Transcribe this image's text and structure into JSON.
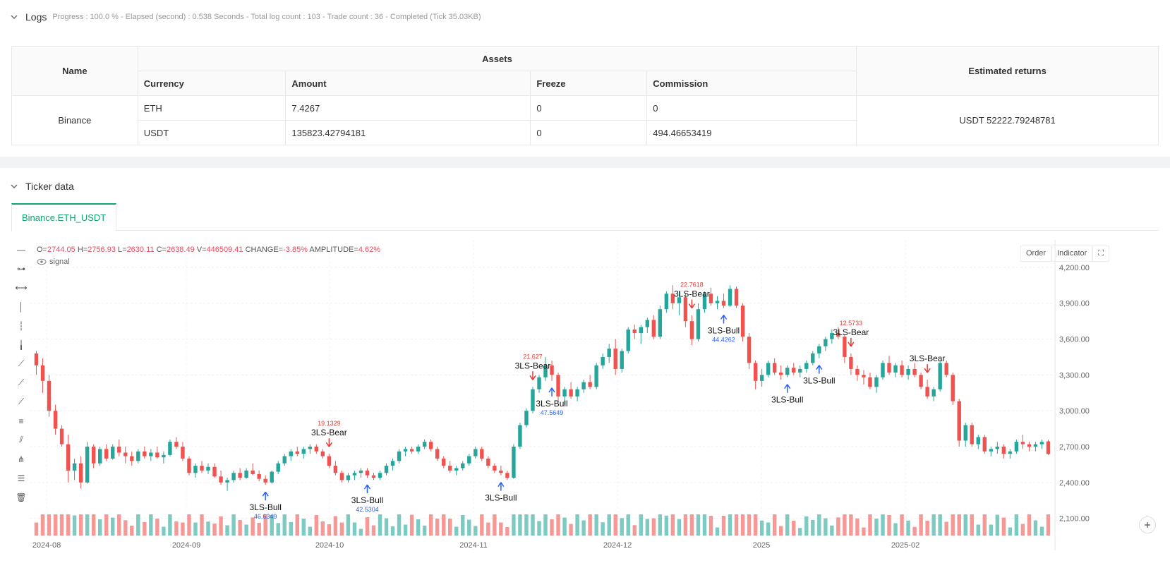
{
  "logs": {
    "title": "Logs",
    "meta": "Progress : 100.0 % - Elapsed (second) : 0.538  Seconds - Total log count : 103 - Trade count : 36 - Completed (Tick 35.03KB)"
  },
  "assets_table": {
    "headers": {
      "name": "Name",
      "assets": "Assets",
      "estimated_returns": "Estimated returns"
    },
    "sub_headers": [
      "Currency",
      "Amount",
      "Freeze",
      "Commission"
    ],
    "exchange": "Binance",
    "rows": [
      {
        "currency": "ETH",
        "amount": "7.4267",
        "freeze": "0",
        "commission": "0"
      },
      {
        "currency": "USDT",
        "amount": "135823.42794181",
        "freeze": "0",
        "commission": "494.46653419"
      }
    ],
    "estimated_returns": "USDT 52222.79248781"
  },
  "ticker": {
    "title": "Ticker data",
    "tab": "Binance.ETH_USDT"
  },
  "chart_header": {
    "o_label": "O=",
    "o": "2744.05",
    "h_label": "H=",
    "h": "2756.93",
    "l_label": "L=",
    "l": "2630.11",
    "c_label": "C=",
    "c": "2638.49",
    "v_label": "V=",
    "v": "446509.41",
    "change_label": "CHANGE=",
    "change": "-3.85%",
    "amp_label": "AMPLITUDE=",
    "amp": "4.62%",
    "signal": "signal",
    "order_btn": "Order",
    "indicator_btn": "Indicator"
  },
  "colors": {
    "up": "#26a69a",
    "down": "#ef5350",
    "accent": "#13a36e",
    "bull_label": "#2962ff",
    "bear_label": "#e53935"
  },
  "toolbar_icons": [
    "cursor-cross-icon",
    "horizontal-ray-icon",
    "horizontal-line-icon",
    "vertical-line-icon",
    "vertical-segment-icon",
    "vertical-ray-icon",
    "trend-line-icon",
    "ray-line-icon",
    "extended-line-icon",
    "fib-icon",
    "parallel-channel-icon",
    "pitchfork-icon",
    "measure-icon",
    "trash-icon"
  ],
  "chart_data": {
    "type": "candlestick",
    "symbol": "Binance.ETH_USDT",
    "y_ticks": [
      "4,200.00",
      "3,900.00",
      "3,600.00",
      "3,300.00",
      "3,000.00",
      "2,700.00",
      "2,400.00",
      "2,100.00"
    ],
    "x_ticks": [
      "2024-08",
      "2024-09",
      "2024-10",
      "2024-11",
      "2024-12",
      "2025",
      "2025-02"
    ],
    "ylim": [
      1950,
      4300
    ],
    "candles": [
      [
        3480,
        3500,
        3300,
        3380
      ],
      [
        3380,
        3440,
        3150,
        3250
      ],
      [
        3250,
        3300,
        2950,
        3000
      ],
      [
        3000,
        3050,
        2800,
        2850
      ],
      [
        2850,
        2880,
        2700,
        2720
      ],
      [
        2720,
        2800,
        2400,
        2500
      ],
      [
        2500,
        2600,
        2420,
        2560
      ],
      [
        2560,
        2620,
        2350,
        2400
      ],
      [
        2400,
        2740,
        2390,
        2700
      ],
      [
        2700,
        2720,
        2520,
        2560
      ],
      [
        2560,
        2700,
        2540,
        2680
      ],
      [
        2680,
        2720,
        2580,
        2600
      ],
      [
        2600,
        2720,
        2590,
        2700
      ],
      [
        2700,
        2760,
        2620,
        2650
      ],
      [
        2650,
        2700,
        2560,
        2620
      ],
      [
        2620,
        2660,
        2540,
        2580
      ],
      [
        2580,
        2680,
        2560,
        2660
      ],
      [
        2660,
        2700,
        2600,
        2620
      ],
      [
        2620,
        2680,
        2580,
        2650
      ],
      [
        2650,
        2700,
        2600,
        2610
      ],
      [
        2610,
        2660,
        2560,
        2630
      ],
      [
        2630,
        2760,
        2620,
        2740
      ],
      [
        2740,
        2780,
        2680,
        2700
      ],
      [
        2700,
        2740,
        2580,
        2600
      ],
      [
        2600,
        2620,
        2460,
        2480
      ],
      [
        2480,
        2560,
        2440,
        2540
      ],
      [
        2540,
        2580,
        2480,
        2500
      ],
      [
        2500,
        2560,
        2470,
        2530
      ],
      [
        2530,
        2560,
        2440,
        2450
      ],
      [
        2450,
        2500,
        2380,
        2400
      ],
      [
        2400,
        2440,
        2330,
        2420
      ],
      [
        2420,
        2500,
        2400,
        2480
      ],
      [
        2480,
        2520,
        2420,
        2440
      ],
      [
        2440,
        2520,
        2430,
        2500
      ],
      [
        2500,
        2560,
        2460,
        2470
      ],
      [
        2470,
        2500,
        2410,
        2430
      ],
      [
        2430,
        2460,
        2380,
        2400
      ],
      [
        2400,
        2500,
        2390,
        2490
      ],
      [
        2490,
        2580,
        2470,
        2560
      ],
      [
        2560,
        2640,
        2540,
        2620
      ],
      [
        2620,
        2680,
        2580,
        2660
      ],
      [
        2660,
        2700,
        2620,
        2640
      ],
      [
        2640,
        2700,
        2600,
        2680
      ],
      [
        2680,
        2720,
        2640,
        2700
      ],
      [
        2700,
        2720,
        2640,
        2660
      ],
      [
        2660,
        2680,
        2600,
        2620
      ],
      [
        2620,
        2640,
        2520,
        2540
      ],
      [
        2540,
        2580,
        2460,
        2480
      ],
      [
        2480,
        2500,
        2400,
        2420
      ],
      [
        2420,
        2480,
        2400,
        2460
      ],
      [
        2460,
        2500,
        2420,
        2480
      ],
      [
        2480,
        2520,
        2440,
        2500
      ],
      [
        2500,
        2520,
        2440,
        2460
      ],
      [
        2460,
        2480,
        2420,
        2440
      ],
      [
        2440,
        2500,
        2420,
        2480
      ],
      [
        2480,
        2560,
        2460,
        2540
      ],
      [
        2540,
        2600,
        2500,
        2580
      ],
      [
        2580,
        2680,
        2560,
        2660
      ],
      [
        2660,
        2700,
        2620,
        2680
      ],
      [
        2680,
        2700,
        2640,
        2660
      ],
      [
        2660,
        2720,
        2640,
        2700
      ],
      [
        2700,
        2760,
        2680,
        2740
      ],
      [
        2740,
        2760,
        2660,
        2680
      ],
      [
        2680,
        2700,
        2580,
        2600
      ],
      [
        2600,
        2620,
        2520,
        2540
      ],
      [
        2540,
        2580,
        2480,
        2500
      ],
      [
        2500,
        2540,
        2460,
        2520
      ],
      [
        2520,
        2580,
        2500,
        2560
      ],
      [
        2560,
        2640,
        2540,
        2620
      ],
      [
        2620,
        2700,
        2600,
        2680
      ],
      [
        2680,
        2700,
        2580,
        2600
      ],
      [
        2600,
        2620,
        2520,
        2540
      ],
      [
        2540,
        2560,
        2480,
        2500
      ],
      [
        2500,
        2540,
        2460,
        2480
      ],
      [
        2480,
        2500,
        2420,
        2440
      ],
      [
        2440,
        2720,
        2430,
        2700
      ],
      [
        2700,
        2900,
        2680,
        2880
      ],
      [
        2880,
        3020,
        2860,
        3000
      ],
      [
        3000,
        3200,
        2980,
        3180
      ],
      [
        3180,
        3300,
        3150,
        3280
      ],
      [
        3280,
        3450,
        3250,
        3380
      ],
      [
        3380,
        3420,
        3250,
        3300
      ],
      [
        3300,
        3320,
        3080,
        3120
      ],
      [
        3120,
        3200,
        3050,
        3180
      ],
      [
        3180,
        3240,
        3100,
        3120
      ],
      [
        3120,
        3200,
        3080,
        3180
      ],
      [
        3180,
        3260,
        3150,
        3240
      ],
      [
        3240,
        3300,
        3180,
        3200
      ],
      [
        3200,
        3400,
        3180,
        3380
      ],
      [
        3380,
        3480,
        3350,
        3450
      ],
      [
        3450,
        3560,
        3400,
        3520
      ],
      [
        3520,
        3600,
        3300,
        3350
      ],
      [
        3350,
        3520,
        3320,
        3500
      ],
      [
        3500,
        3700,
        3480,
        3680
      ],
      [
        3680,
        3720,
        3600,
        3650
      ],
      [
        3650,
        3720,
        3560,
        3700
      ],
      [
        3700,
        3780,
        3650,
        3760
      ],
      [
        3760,
        3800,
        3600,
        3620
      ],
      [
        3620,
        3880,
        3600,
        3850
      ],
      [
        3850,
        4000,
        3820,
        3980
      ],
      [
        3980,
        4050,
        3850,
        3900
      ],
      [
        3900,
        4000,
        3800,
        3950
      ],
      [
        3950,
        3980,
        3700,
        3750
      ],
      [
        3750,
        3800,
        3550,
        3600
      ],
      [
        3600,
        3900,
        3580,
        3850
      ],
      [
        3850,
        4000,
        3820,
        3980
      ],
      [
        3980,
        4030,
        3880,
        3900
      ],
      [
        3900,
        3960,
        3850,
        3920
      ],
      [
        3920,
        3980,
        3860,
        3880
      ],
      [
        3880,
        4050,
        3870,
        4020
      ],
      [
        4020,
        4040,
        3860,
        3880
      ],
      [
        3880,
        3900,
        3580,
        3620
      ],
      [
        3620,
        3650,
        3350,
        3400
      ],
      [
        3400,
        3420,
        3180,
        3250
      ],
      [
        3250,
        3350,
        3200,
        3300
      ],
      [
        3300,
        3420,
        3280,
        3400
      ],
      [
        3400,
        3440,
        3300,
        3320
      ],
      [
        3320,
        3380,
        3260,
        3300
      ],
      [
        3300,
        3380,
        3280,
        3360
      ],
      [
        3360,
        3400,
        3300,
        3320
      ],
      [
        3320,
        3380,
        3280,
        3350
      ],
      [
        3350,
        3420,
        3320,
        3400
      ],
      [
        3400,
        3500,
        3380,
        3480
      ],
      [
        3480,
        3560,
        3440,
        3540
      ],
      [
        3540,
        3620,
        3500,
        3600
      ],
      [
        3600,
        3680,
        3560,
        3650
      ],
      [
        3650,
        3700,
        3600,
        3620
      ],
      [
        3620,
        3640,
        3400,
        3450
      ],
      [
        3450,
        3480,
        3300,
        3350
      ],
      [
        3350,
        3380,
        3250,
        3300
      ],
      [
        3300,
        3340,
        3220,
        3280
      ],
      [
        3280,
        3320,
        3180,
        3200
      ],
      [
        3200,
        3300,
        3150,
        3280
      ],
      [
        3280,
        3420,
        3260,
        3400
      ],
      [
        3400,
        3460,
        3300,
        3320
      ],
      [
        3320,
        3400,
        3280,
        3380
      ],
      [
        3380,
        3420,
        3280,
        3300
      ],
      [
        3300,
        3380,
        3260,
        3350
      ],
      [
        3350,
        3400,
        3280,
        3300
      ],
      [
        3300,
        3320,
        3180,
        3200
      ],
      [
        3200,
        3260,
        3100,
        3120
      ],
      [
        3120,
        3200,
        3080,
        3180
      ],
      [
        3180,
        3420,
        3160,
        3400
      ],
      [
        3400,
        3420,
        3280,
        3300
      ],
      [
        3300,
        3320,
        3050,
        3080
      ],
      [
        3080,
        3100,
        2700,
        2750
      ],
      [
        2750,
        2900,
        2700,
        2880
      ],
      [
        2880,
        2900,
        2700,
        2720
      ],
      [
        2720,
        2800,
        2680,
        2780
      ],
      [
        2780,
        2800,
        2640,
        2660
      ],
      [
        2660,
        2700,
        2620,
        2680
      ],
      [
        2680,
        2740,
        2640,
        2700
      ],
      [
        2700,
        2720,
        2600,
        2640
      ],
      [
        2640,
        2680,
        2600,
        2660
      ],
      [
        2660,
        2760,
        2640,
        2740
      ],
      [
        2740,
        2800,
        2680,
        2720
      ],
      [
        2720,
        2740,
        2660,
        2700
      ],
      [
        2700,
        2740,
        2660,
        2720
      ],
      [
        2720,
        2760,
        2680,
        2740
      ],
      [
        2744,
        2757,
        2630,
        2638
      ]
    ],
    "signals": [
      {
        "label": "3LS-Bull",
        "value": "46.6349",
        "idx": 36,
        "type": "bull"
      },
      {
        "label": "3LS-Bear",
        "value": "19.1329",
        "idx": 46,
        "type": "bear"
      },
      {
        "label": "3LS-Bull",
        "value": "42.5304",
        "idx": 52,
        "type": "bull"
      },
      {
        "label": "3LS-Bull",
        "value": "",
        "idx": 73,
        "type": "bull"
      },
      {
        "label": "3LS-Bear",
        "value": "21.627",
        "idx": 78,
        "type": "bear"
      },
      {
        "label": "3LS-Bull",
        "value": "47.5649",
        "idx": 81,
        "type": "bull"
      },
      {
        "label": "3LS-Bear",
        "value": "22.7618",
        "idx": 103,
        "type": "bear"
      },
      {
        "label": "3LS-Bull",
        "value": "44.4262",
        "idx": 108,
        "type": "bull"
      },
      {
        "label": "3LS-Bull",
        "value": "",
        "idx": 118,
        "type": "bull"
      },
      {
        "label": "3LS-Bull",
        "value": "",
        "idx": 123,
        "type": "bull"
      },
      {
        "label": "3LS-Bear",
        "value": "12.5733",
        "idx": 128,
        "type": "bear"
      },
      {
        "label": "3LS-Bear",
        "value": "",
        "idx": 140,
        "type": "bear"
      }
    ]
  }
}
